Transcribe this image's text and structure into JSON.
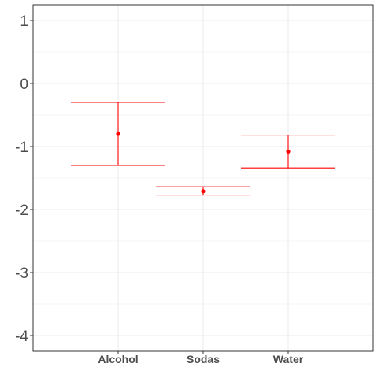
{
  "chart_data": {
    "type": "errorbar",
    "title": "",
    "xlabel": "",
    "ylabel": "",
    "categories": [
      "Alcohol",
      "Sodas",
      "Water"
    ],
    "series": [
      {
        "estimate": [
          -0.8,
          -1.71,
          -1.08
        ],
        "lower": [
          -1.3,
          -1.77,
          -1.34
        ],
        "upper": [
          -0.3,
          -1.64,
          -0.82
        ]
      }
    ],
    "ylim": [
      -4.25,
      1.25
    ],
    "yticks": [
      1,
      0,
      -1,
      -2,
      -3,
      -4
    ],
    "ytick_labels": [
      "1",
      "0",
      "-1",
      "-2",
      "-3",
      "-4"
    ],
    "grid": true,
    "legend": "none",
    "colors": {
      "series": "#ff0000",
      "grid_major": "#ebebeb",
      "grid_minor": "#f5f5f5",
      "panel_border": "#333333",
      "axis_text": "#4d4d4d"
    }
  }
}
